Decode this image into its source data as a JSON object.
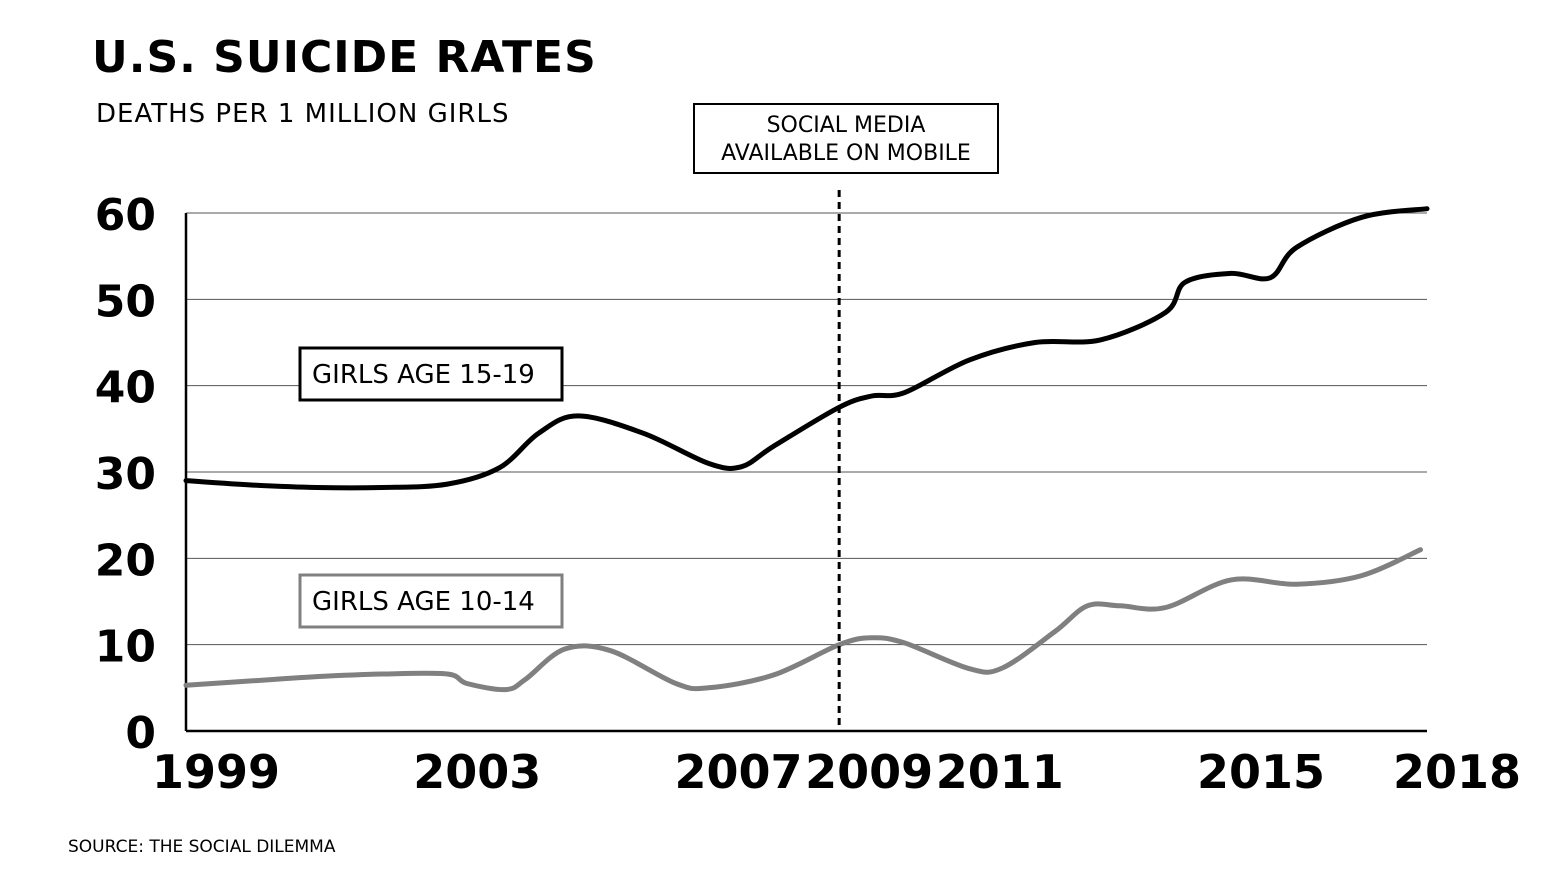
{
  "chart_data": {
    "type": "line",
    "title": "U.S. SUICIDE RATES",
    "subtitle": "DEATHS PER 1 MILLION GIRLS",
    "source": "SOURCE: THE SOCIAL DILEMMA",
    "xlabel": "",
    "ylabel": "",
    "xlim": [
      1999,
      2018
    ],
    "ylim": [
      0,
      60
    ],
    "x_ticks": [
      1999,
      2003,
      2007,
      2009,
      2011,
      2015,
      2018
    ],
    "y_ticks": [
      0,
      10,
      20,
      30,
      40,
      50,
      60
    ],
    "grid": true,
    "annotation": {
      "x": 2009,
      "lines": [
        "SOCIAL MEDIA",
        "AVAILABLE ON MOBILE"
      ]
    },
    "series": [
      {
        "name": "GIRLS AGE 15-19",
        "color": "#000000",
        "x": [
          1999,
          2000,
          2001,
          2002,
          2003,
          2003.8,
          2004.4,
          2005,
          2006,
          2007,
          2007.5,
          2008,
          2009,
          2009.5,
          2010,
          2011,
          2012,
          2013,
          2014,
          2014.3,
          2015,
          2015.6,
          2016,
          2017,
          2018
        ],
        "values": [
          29,
          28.5,
          28.2,
          28.2,
          28.6,
          30.5,
          34.5,
          36.5,
          34.5,
          31,
          30.6,
          33,
          37.5,
          38.8,
          39.2,
          43,
          45,
          45.3,
          48.5,
          52,
          53,
          52.5,
          56,
          59.5,
          60.5
        ]
      },
      {
        "name": "GIRLS AGE 10-14",
        "color": "#808080",
        "x": [
          1999,
          2000,
          2001,
          2002,
          2003,
          2003.3,
          2003.9,
          2004.2,
          2004.8,
          2005.5,
          2006.5,
          2007,
          2008,
          2009,
          2009.5,
          2010,
          2011,
          2011.5,
          2012.3,
          2012.8,
          2013.3,
          2014,
          2015,
          2016,
          2017,
          2017.9
        ],
        "values": [
          5.3,
          5.8,
          6.3,
          6.6,
          6.6,
          5.5,
          4.8,
          6,
          9.5,
          9.3,
          5.5,
          5,
          6.5,
          10,
          10.8,
          10.2,
          7.2,
          7.3,
          11.5,
          14.5,
          14.5,
          14.3,
          17.5,
          17,
          18,
          21
        ]
      }
    ]
  }
}
